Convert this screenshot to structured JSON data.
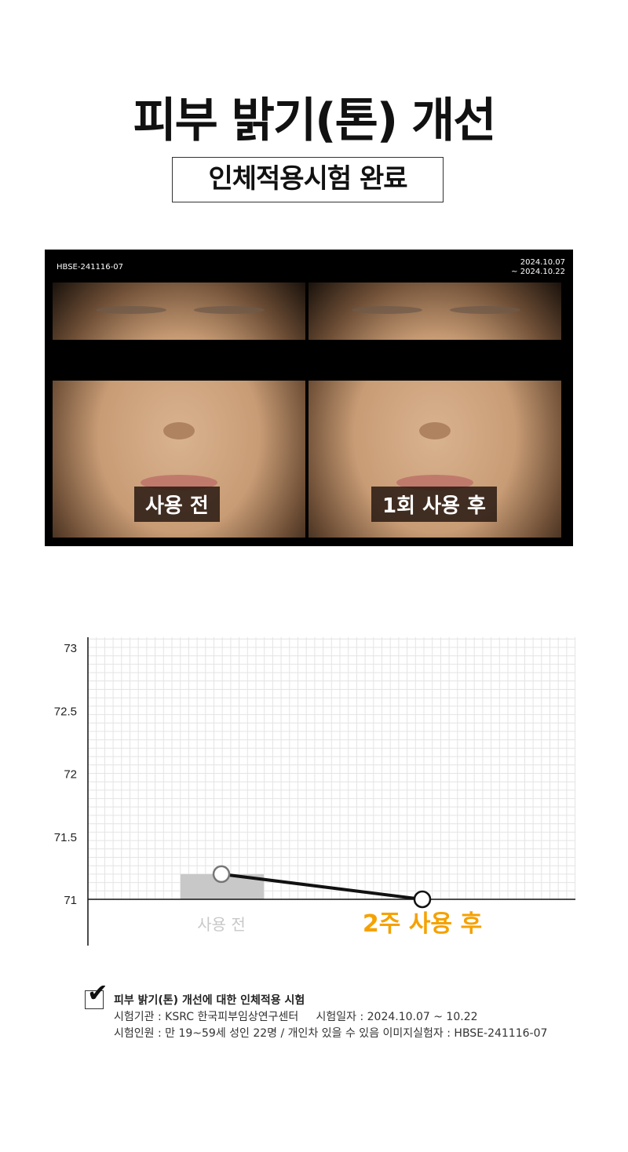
{
  "header": {
    "title": "피부 밝기(톤) 개선",
    "subtitle": "인체적용시험 완료"
  },
  "photo": {
    "subject_id": "HBSE-241116-07",
    "date_start": "2024.10.07",
    "date_end": "~ 2024.10.22",
    "before_label": "사용 전",
    "after_label": "1회 사용 후"
  },
  "chart_data": {
    "type": "line",
    "categories": [
      "사용 전",
      "2주 사용 후"
    ],
    "values": [
      71.2,
      71.0
    ],
    "ylim": [
      71,
      73
    ],
    "yticks": [
      "73",
      "72.5",
      "72",
      "71.5",
      "71"
    ],
    "grid": true,
    "colors": {
      "line": "#111111",
      "bar": "#c8c8c8",
      "before_label": "#c8c8c8",
      "after_label": "#f5a100"
    }
  },
  "footnote": {
    "heading": "피부 밝기(톤) 개선에 대한 인체적용 시험",
    "line1": "시험기관 : KSRC 한국피부임상연구센터     시험일자 : 2024.10.07 ~ 10.22",
    "line2": "시험인원 : 만 19~59세 성인 22명 / 개인차 있을 수 있음 이미지실험자 : HBSE-241116-07"
  }
}
